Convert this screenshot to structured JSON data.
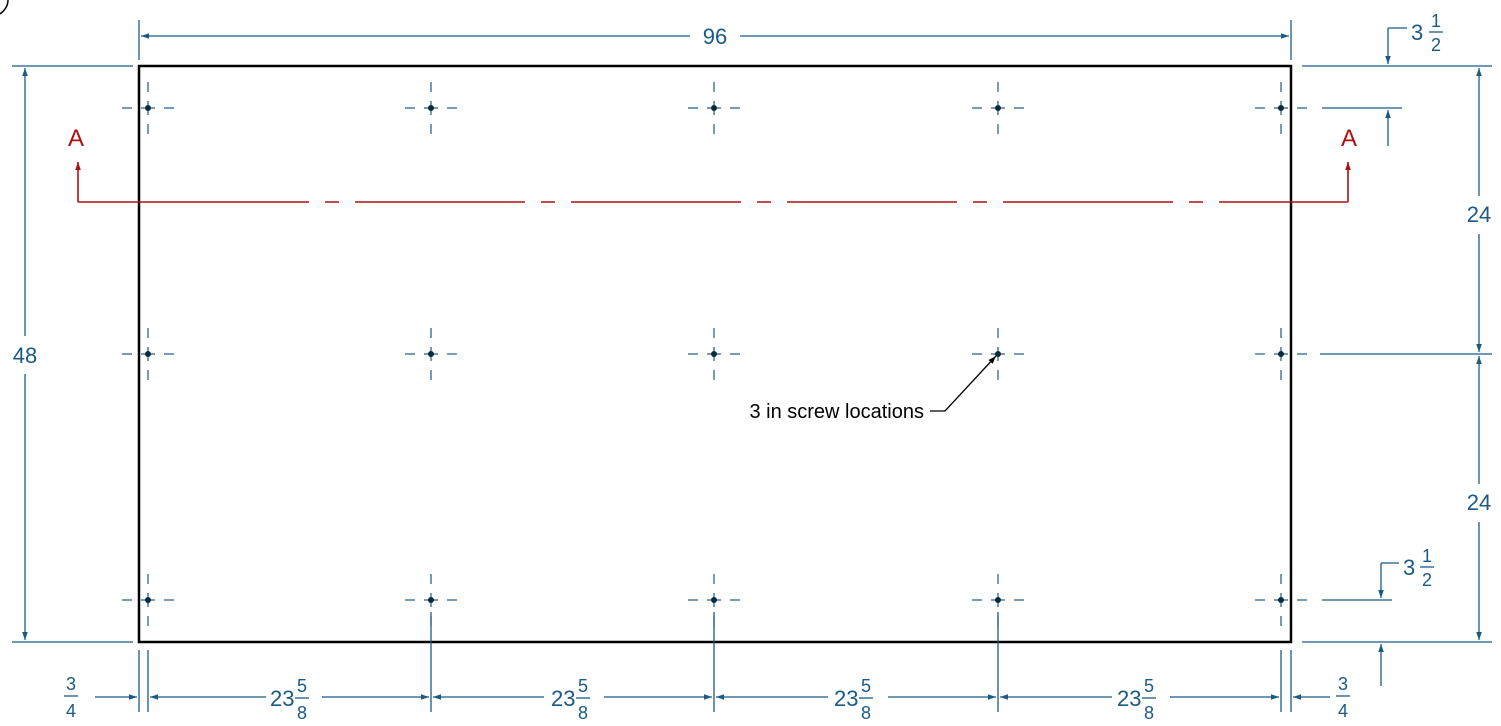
{
  "colors": {
    "outline": "#000000",
    "dimension": "#1a5a85",
    "section": "#b01010",
    "centerline": "#1a5a85"
  },
  "overall": {
    "width": "96",
    "height": "48"
  },
  "section_marker": {
    "left": "A",
    "right": "A"
  },
  "edge_offsets": {
    "top": {
      "whole": "3",
      "num": "1",
      "den": "2"
    },
    "bottom": {
      "whole": "3",
      "num": "1",
      "den": "2"
    },
    "left": {
      "num": "3",
      "den": "4"
    },
    "right": {
      "num": "3",
      "den": "4"
    }
  },
  "vertical_spacing": [
    "24",
    "24"
  ],
  "horizontal_spacing": [
    {
      "whole": "23",
      "num": "5",
      "den": "8"
    },
    {
      "whole": "23",
      "num": "5",
      "den": "8"
    },
    {
      "whole": "23",
      "num": "5",
      "den": "8"
    },
    {
      "whole": "23",
      "num": "5",
      "den": "8"
    }
  ],
  "note": "3 in screw locations",
  "screw_grid": {
    "columns": 5,
    "rows": 3
  }
}
